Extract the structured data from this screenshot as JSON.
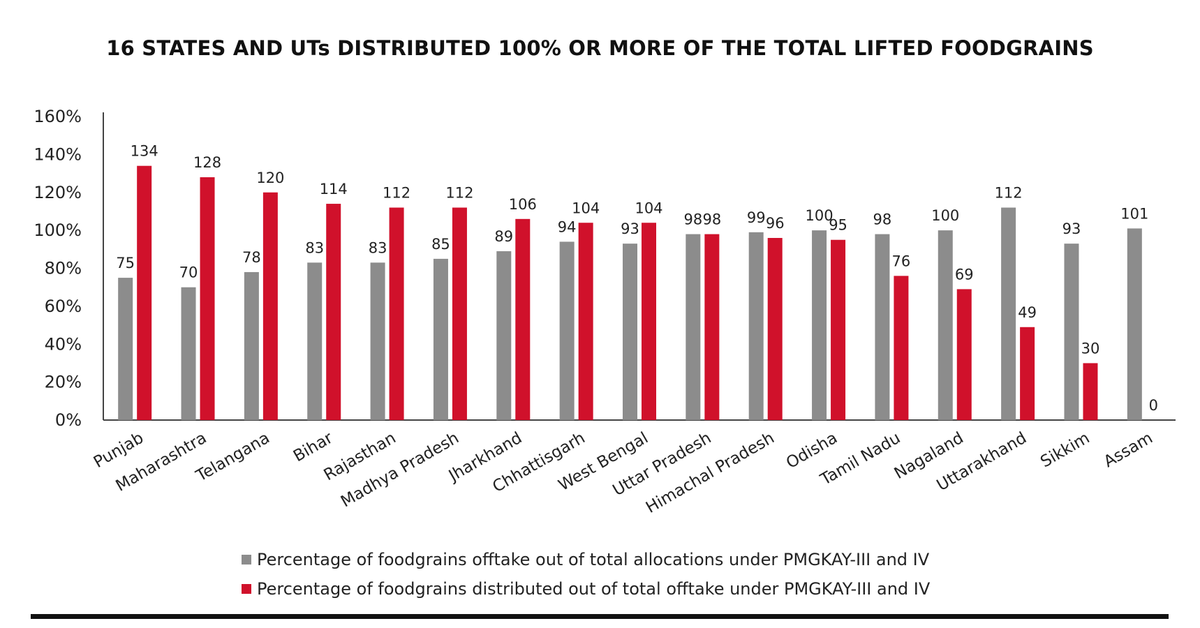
{
  "chart_data": {
    "type": "bar",
    "title": "16 STATES AND UTs DISTRIBUTED 100% OR MORE OF THE TOTAL LIFTED FOODGRAINS",
    "xlabel": "",
    "ylabel": "",
    "ylim": [
      0,
      160
    ],
    "yticks": [
      "0%",
      "20%",
      "40%",
      "60%",
      "80%",
      "100%",
      "120%",
      "140%",
      "160%"
    ],
    "categories": [
      "Punjab",
      "Maharashtra",
      "Telangana",
      "Bihar",
      "Rajasthan",
      "Madhya Pradesh",
      "Jharkhand",
      "Chhattisgarh",
      "West Bengal",
      "Uttar Pradesh",
      "Himachal Pradesh",
      "Odisha",
      "Tamil Nadu",
      "Nagaland",
      "Uttarakhand",
      "Sikkim",
      "Assam"
    ],
    "series": [
      {
        "name": "Percentage of foodgrains offtake out of total allocations under PMGKAY-III and IV",
        "color": "#8c8c8c",
        "values": [
          75,
          70,
          78,
          83,
          83,
          85,
          89,
          94,
          93,
          98,
          99,
          100,
          98,
          100,
          112,
          93,
          101
        ]
      },
      {
        "name": "Percentage of foodgrains distributed out of total offtake under PMGKAY-III and IV",
        "color": "#d0112b",
        "values": [
          134,
          128,
          120,
          114,
          112,
          112,
          106,
          104,
          104,
          98,
          96,
          95,
          76,
          69,
          49,
          30,
          0
        ]
      }
    ],
    "grid": false,
    "legend_position": "bottom"
  }
}
